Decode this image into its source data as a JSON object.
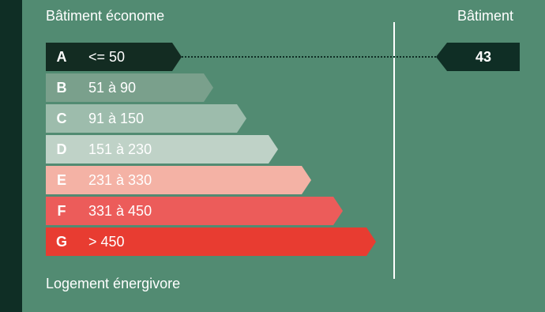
{
  "labels": {
    "top_left": "Bâtiment économe",
    "top_right": "Bâtiment",
    "bottom_left": "Logement énergivore"
  },
  "classes": [
    {
      "letter": "A",
      "range": "<= 50",
      "color": "#132c22",
      "text_color": "#ffffff"
    },
    {
      "letter": "B",
      "range": "51 à 90",
      "color": "#7aa08c",
      "text_color": "#ffffff"
    },
    {
      "letter": "C",
      "range": "91 à 150",
      "color": "#9dbcac",
      "text_color": "#ffffff"
    },
    {
      "letter": "D",
      "range": "151 à 230",
      "color": "#bfd2c7",
      "text_color": "#ffffff"
    },
    {
      "letter": "E",
      "range": "231 à 330",
      "color": "#f4b2a5",
      "text_color": "#ffffff"
    },
    {
      "letter": "F",
      "range": "331 à 450",
      "color": "#ec5c5a",
      "text_color": "#ffffff"
    },
    {
      "letter": "G",
      "range": "> 450",
      "color": "#e83c31",
      "text_color": "#ffffff"
    }
  ],
  "indicator": {
    "value": "43",
    "class": "A"
  }
}
